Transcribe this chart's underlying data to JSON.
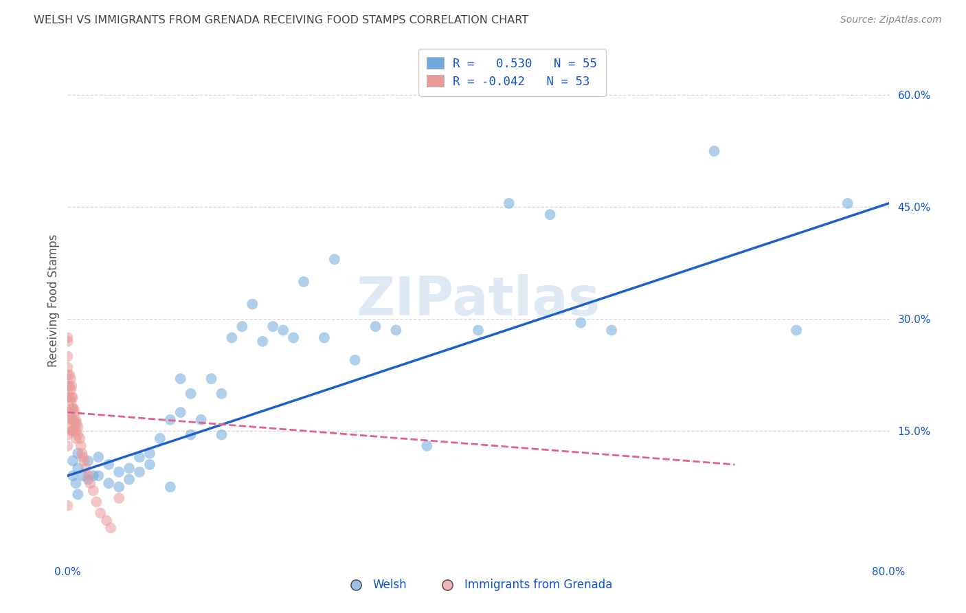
{
  "title": "WELSH VS IMMIGRANTS FROM GRENADA RECEIVING FOOD STAMPS CORRELATION CHART",
  "source": "Source: ZipAtlas.com",
  "ylabel": "Receiving Food Stamps",
  "watermark": "ZIPatlas",
  "xlim": [
    0.0,
    0.8
  ],
  "ylim": [
    -0.02,
    0.67
  ],
  "xticks": [
    0.0,
    0.1,
    0.2,
    0.3,
    0.4,
    0.5,
    0.6,
    0.7,
    0.8
  ],
  "xticklabels": [
    "0.0%",
    "",
    "",
    "",
    "",
    "",
    "",
    "",
    "80.0%"
  ],
  "yticks_right": [
    0.15,
    0.3,
    0.45,
    0.6
  ],
  "ytick_right_labels": [
    "15.0%",
    "30.0%",
    "45.0%",
    "60.0%"
  ],
  "hlines": [
    0.15,
    0.3,
    0.45,
    0.6
  ],
  "welsh_color": "#6fa8dc",
  "grenada_color": "#ea9999",
  "welsh_line_color": "#1f5fcc",
  "grenada_line_color": "#e06090",
  "legend_welsh_label": "R =   0.530   N = 55",
  "legend_grenada_label": "R = -0.042   N = 53",
  "legend_welsh_display": "Welsh",
  "legend_grenada_display": "Immigrants from Grenada",
  "welsh_R": 0.53,
  "welsh_N": 55,
  "grenada_R": -0.042,
  "grenada_N": 53,
  "welsh_scatter_x": [
    0.005,
    0.005,
    0.008,
    0.01,
    0.01,
    0.01,
    0.015,
    0.02,
    0.02,
    0.025,
    0.03,
    0.03,
    0.04,
    0.04,
    0.05,
    0.05,
    0.06,
    0.06,
    0.07,
    0.07,
    0.08,
    0.08,
    0.09,
    0.1,
    0.1,
    0.11,
    0.11,
    0.12,
    0.12,
    0.13,
    0.14,
    0.15,
    0.15,
    0.16,
    0.17,
    0.18,
    0.19,
    0.2,
    0.21,
    0.22,
    0.23,
    0.25,
    0.26,
    0.28,
    0.3,
    0.32,
    0.35,
    0.4,
    0.43,
    0.47,
    0.5,
    0.53,
    0.63,
    0.71,
    0.76
  ],
  "welsh_scatter_y": [
    0.09,
    0.11,
    0.08,
    0.1,
    0.12,
    0.065,
    0.09,
    0.11,
    0.085,
    0.09,
    0.115,
    0.09,
    0.105,
    0.08,
    0.095,
    0.075,
    0.1,
    0.085,
    0.115,
    0.095,
    0.12,
    0.105,
    0.14,
    0.165,
    0.075,
    0.22,
    0.175,
    0.2,
    0.145,
    0.165,
    0.22,
    0.2,
    0.145,
    0.275,
    0.29,
    0.32,
    0.27,
    0.29,
    0.285,
    0.275,
    0.35,
    0.275,
    0.38,
    0.245,
    0.29,
    0.285,
    0.13,
    0.285,
    0.455,
    0.44,
    0.295,
    0.285,
    0.525,
    0.285,
    0.455
  ],
  "grenada_scatter_x": [
    0.0,
    0.0,
    0.0,
    0.0,
    0.0,
    0.0,
    0.0,
    0.0,
    0.0,
    0.0,
    0.0,
    0.0,
    0.002,
    0.002,
    0.002,
    0.003,
    0.003,
    0.003,
    0.003,
    0.004,
    0.004,
    0.004,
    0.004,
    0.004,
    0.005,
    0.005,
    0.005,
    0.005,
    0.006,
    0.006,
    0.006,
    0.007,
    0.007,
    0.008,
    0.008,
    0.008,
    0.009,
    0.01,
    0.01,
    0.012,
    0.013,
    0.014,
    0.015,
    0.016,
    0.018,
    0.02,
    0.022,
    0.025,
    0.028,
    0.032,
    0.038,
    0.042,
    0.05
  ],
  "grenada_scatter_y": [
    0.235,
    0.275,
    0.27,
    0.25,
    0.225,
    0.21,
    0.195,
    0.175,
    0.16,
    0.145,
    0.13,
    0.05,
    0.225,
    0.21,
    0.195,
    0.22,
    0.205,
    0.19,
    0.175,
    0.21,
    0.195,
    0.18,
    0.165,
    0.15,
    0.195,
    0.18,
    0.165,
    0.15,
    0.18,
    0.165,
    0.15,
    0.175,
    0.16,
    0.165,
    0.15,
    0.14,
    0.16,
    0.155,
    0.145,
    0.14,
    0.13,
    0.12,
    0.115,
    0.11,
    0.1,
    0.09,
    0.08,
    0.07,
    0.055,
    0.04,
    0.03,
    0.02,
    0.06
  ],
  "background_color": "#ffffff",
  "grid_color": "#cccccc",
  "title_color": "#434343",
  "axis_label_color": "#1155cc",
  "right_tick_color": "#1155cc",
  "welsh_line_x": [
    0.0,
    0.8
  ],
  "welsh_line_y": [
    0.09,
    0.455
  ],
  "grenada_line_x": [
    0.0,
    0.65
  ],
  "grenada_line_y": [
    0.175,
    0.105
  ]
}
